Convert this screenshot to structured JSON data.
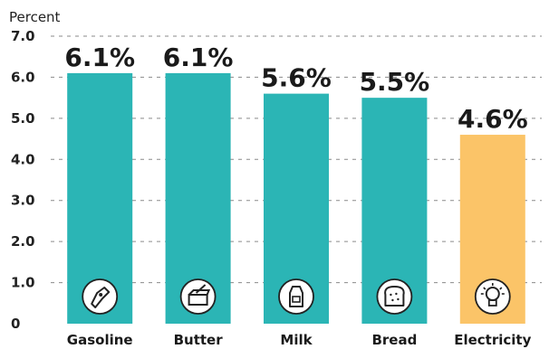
{
  "chart_data": {
    "type": "bar",
    "ylabel": "Percent",
    "xlabel": "",
    "categories": [
      "Gasoline",
      "Butter",
      "Milk",
      "Bread",
      "Electricity"
    ],
    "values": [
      6.1,
      6.1,
      5.6,
      5.5,
      4.6
    ],
    "data_labels": [
      "6.1%",
      "6.1%",
      "5.6%",
      "5.5%",
      "4.6%"
    ],
    "icons": [
      "fuel-pump-icon",
      "butter-icon",
      "milk-carton-icon",
      "bread-icon",
      "light-bulb-icon"
    ],
    "bar_colors": [
      "#2bb5b5",
      "#2bb5b5",
      "#2bb5b5",
      "#2bb5b5",
      "#fbc468"
    ],
    "ylim": [
      0,
      7.0
    ],
    "yticks": [
      "0",
      "1.0",
      "2.0",
      "3.0",
      "4.0",
      "5.0",
      "6.0",
      "7.0"
    ],
    "grid": true
  }
}
